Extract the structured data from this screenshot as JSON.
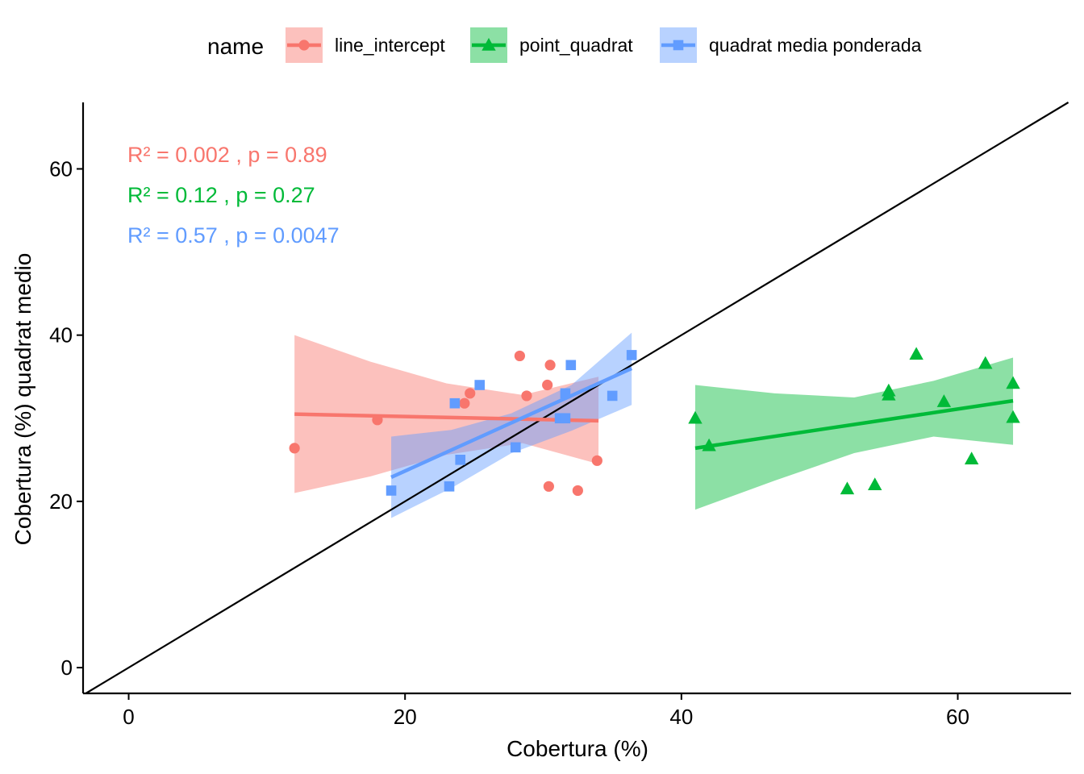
{
  "chart_data": {
    "type": "scatter",
    "xlabel": "Cobertura (%)",
    "ylabel": "Cobertura (%) quadrat medio",
    "xlim": [
      -3.3,
      68.2
    ],
    "ylim": [
      -3.1,
      68.0
    ],
    "x_ticks": [
      0,
      20,
      40,
      60
    ],
    "y_ticks": [
      0,
      20,
      40,
      60
    ],
    "reference_line": {
      "slope": 1,
      "intercept": 0,
      "color": "#000000"
    },
    "legend": {
      "title": "name",
      "placement": "top"
    },
    "series": [
      {
        "name": "line_intercept",
        "color": "#F8766D",
        "marker": "circle",
        "points": [
          [
            12.0,
            26.4
          ],
          [
            18.0,
            29.8
          ],
          [
            24.3,
            31.8
          ],
          [
            24.7,
            33.0
          ],
          [
            28.3,
            37.5
          ],
          [
            28.8,
            32.7
          ],
          [
            30.3,
            34.0
          ],
          [
            30.5,
            36.4
          ],
          [
            30.4,
            21.8
          ],
          [
            32.5,
            21.3
          ],
          [
            33.9,
            24.9
          ]
        ],
        "fit": {
          "x": [
            12.0,
            34.0
          ],
          "y": [
            30.5,
            29.7
          ]
        },
        "band": {
          "x": [
            12.0,
            17.5,
            23.0,
            28.5,
            34.0
          ],
          "upper": [
            40.0,
            36.8,
            34.2,
            32.8,
            35.0
          ],
          "lower": [
            21.0,
            23.0,
            25.6,
            27.0,
            24.5
          ]
        },
        "stats_label": "R² = 0.002 , p = 0.89"
      },
      {
        "name": "point_quadrat",
        "color": "#00BA38",
        "marker": "triangle",
        "points": [
          [
            41.0,
            30.0
          ],
          [
            42.0,
            26.7
          ],
          [
            52.0,
            21.5
          ],
          [
            54.0,
            22.0
          ],
          [
            55.0,
            32.8
          ],
          [
            55.0,
            33.3
          ],
          [
            57.0,
            37.7
          ],
          [
            59.0,
            32.0
          ],
          [
            61.0,
            25.1
          ],
          [
            62.0,
            36.6
          ],
          [
            64.0,
            34.2
          ],
          [
            64.0,
            30.1
          ]
        ],
        "fit": {
          "x": [
            41.0,
            64.0
          ],
          "y": [
            26.4,
            32.1
          ]
        },
        "band": {
          "x": [
            41.0,
            46.75,
            52.5,
            58.25,
            64.0
          ],
          "upper": [
            34.0,
            33.0,
            32.5,
            34.5,
            37.3
          ],
          "lower": [
            19.0,
            22.5,
            25.8,
            27.8,
            26.8
          ]
        },
        "stats_label": "R² = 0.12 , p = 0.27"
      },
      {
        "name": "quadrat media ponderada",
        "color": "#619CFF",
        "marker": "square",
        "points": [
          [
            19.0,
            21.3
          ],
          [
            23.2,
            21.8
          ],
          [
            23.6,
            31.8
          ],
          [
            24.0,
            25.0
          ],
          [
            25.4,
            34.0
          ],
          [
            28.0,
            26.5
          ],
          [
            31.2,
            30.0
          ],
          [
            31.6,
            33.0
          ],
          [
            31.6,
            30.0
          ],
          [
            32.0,
            36.4
          ],
          [
            35.0,
            32.7
          ],
          [
            36.4,
            37.6
          ]
        ],
        "fit": {
          "x": [
            19.0,
            36.4
          ],
          "y": [
            22.9,
            36.0
          ]
        },
        "band": {
          "x": [
            19.0,
            23.35,
            27.7,
            32.05,
            36.4
          ],
          "upper": [
            27.8,
            28.6,
            30.6,
            34.0,
            40.3
          ],
          "lower": [
            18.0,
            21.6,
            25.8,
            28.5,
            31.6
          ]
        },
        "stats_label": "R² = 0.57 , p = 0.0047"
      }
    ]
  }
}
